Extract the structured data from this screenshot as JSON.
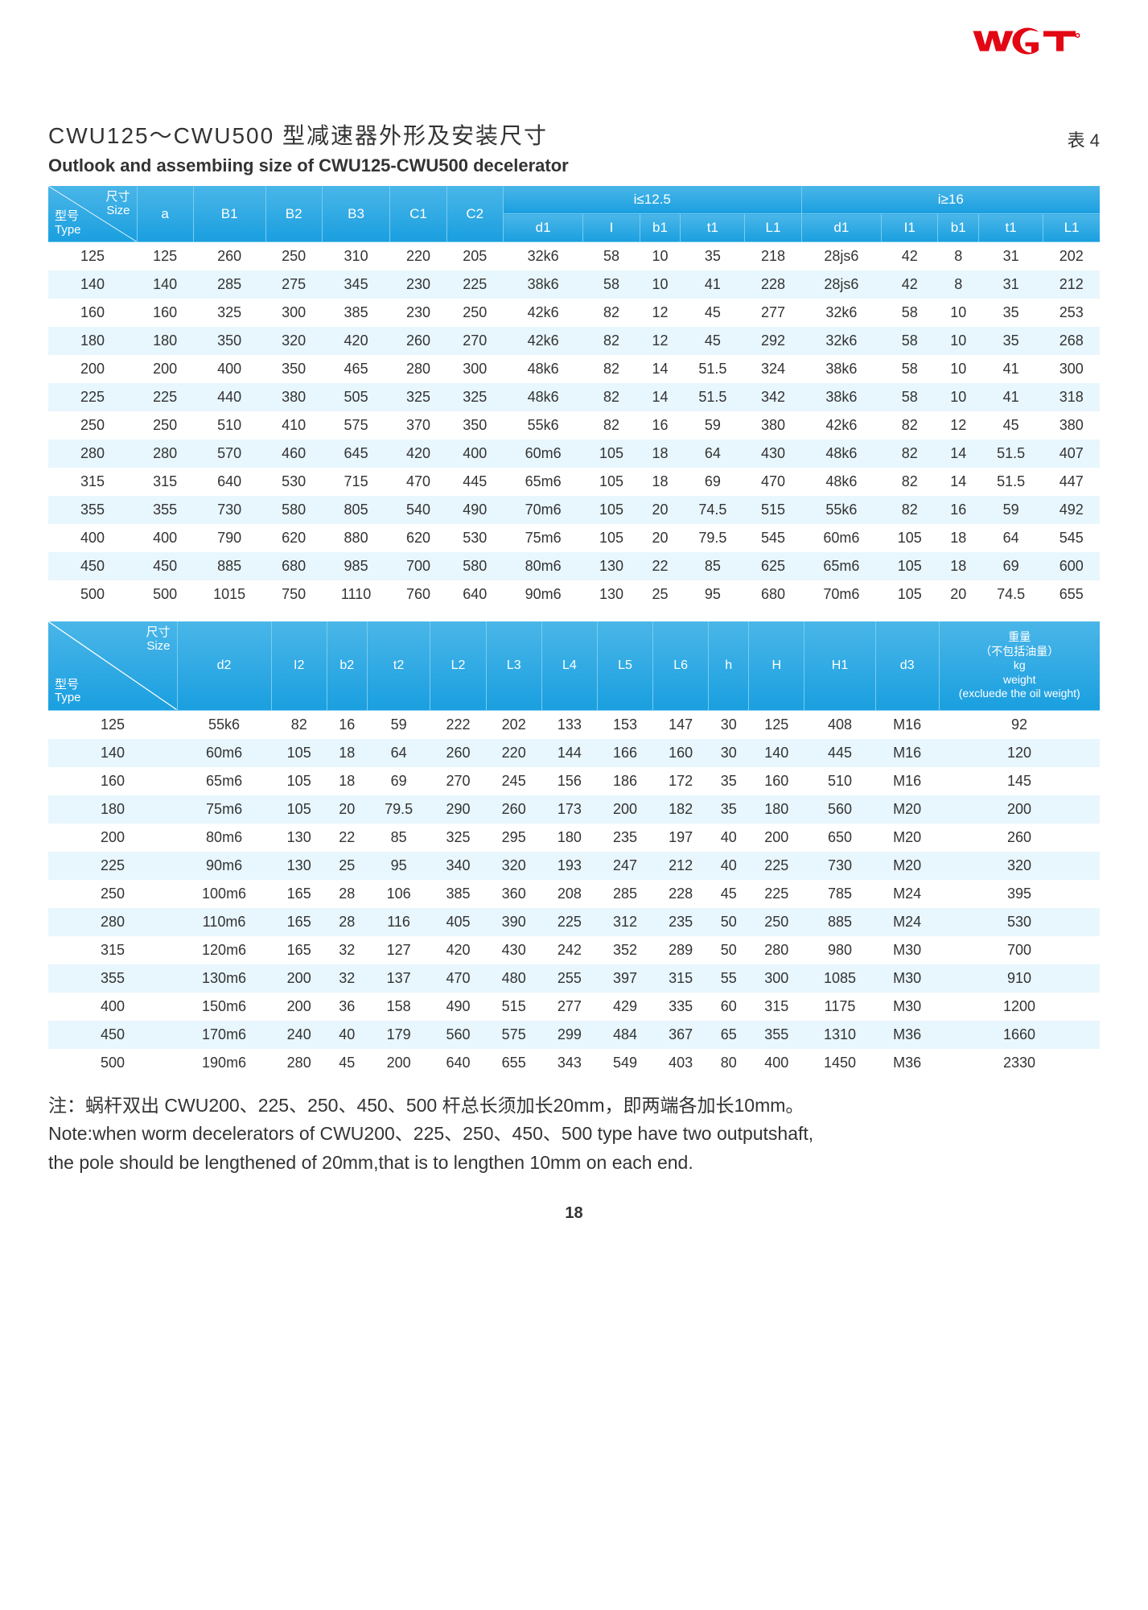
{
  "logo": {
    "text": "WGT",
    "color": "#e30613"
  },
  "title_cn": "CWU125～CWU500 型减速器外形及安装尺寸",
  "table_label": "表 4",
  "title_en": "Outlook and assembiing size of CWU125-CWU500 decelerator",
  "page_number": "18",
  "table1": {
    "header_colors": {
      "bg_top": "#4ab6e8",
      "bg_bottom": "#1a9fe0",
      "border": "#79cdee",
      "text": "#ffffff"
    },
    "row_colors": {
      "odd": "#ffffff",
      "even": "#e8f6fd"
    },
    "corner": {
      "top": "尺寸\nSize",
      "bottom": "型号\nType"
    },
    "group_i1": "i≤12.5",
    "group_i2": "i≥16",
    "base_cols": [
      "a",
      "B1",
      "B2",
      "B3",
      "C1",
      "C2"
    ],
    "sub_cols": [
      "d1",
      "I",
      "b1",
      "t1",
      "L1",
      "d1",
      "I1",
      "b1",
      "t1",
      "L1"
    ],
    "rows": [
      [
        "125",
        "125",
        "260",
        "250",
        "310",
        "220",
        "205",
        "32k6",
        "58",
        "10",
        "35",
        "218",
        "28js6",
        "42",
        "8",
        "31",
        "202"
      ],
      [
        "140",
        "140",
        "285",
        "275",
        "345",
        "230",
        "225",
        "38k6",
        "58",
        "10",
        "41",
        "228",
        "28js6",
        "42",
        "8",
        "31",
        "212"
      ],
      [
        "160",
        "160",
        "325",
        "300",
        "385",
        "230",
        "250",
        "42k6",
        "82",
        "12",
        "45",
        "277",
        "32k6",
        "58",
        "10",
        "35",
        "253"
      ],
      [
        "180",
        "180",
        "350",
        "320",
        "420",
        "260",
        "270",
        "42k6",
        "82",
        "12",
        "45",
        "292",
        "32k6",
        "58",
        "10",
        "35",
        "268"
      ],
      [
        "200",
        "200",
        "400",
        "350",
        "465",
        "280",
        "300",
        "48k6",
        "82",
        "14",
        "51.5",
        "324",
        "38k6",
        "58",
        "10",
        "41",
        "300"
      ],
      [
        "225",
        "225",
        "440",
        "380",
        "505",
        "325",
        "325",
        "48k6",
        "82",
        "14",
        "51.5",
        "342",
        "38k6",
        "58",
        "10",
        "41",
        "318"
      ],
      [
        "250",
        "250",
        "510",
        "410",
        "575",
        "370",
        "350",
        "55k6",
        "82",
        "16",
        "59",
        "380",
        "42k6",
        "82",
        "12",
        "45",
        "380"
      ],
      [
        "280",
        "280",
        "570",
        "460",
        "645",
        "420",
        "400",
        "60m6",
        "105",
        "18",
        "64",
        "430",
        "48k6",
        "82",
        "14",
        "51.5",
        "407"
      ],
      [
        "315",
        "315",
        "640",
        "530",
        "715",
        "470",
        "445",
        "65m6",
        "105",
        "18",
        "69",
        "470",
        "48k6",
        "82",
        "14",
        "51.5",
        "447"
      ],
      [
        "355",
        "355",
        "730",
        "580",
        "805",
        "540",
        "490",
        "70m6",
        "105",
        "20",
        "74.5",
        "515",
        "55k6",
        "82",
        "16",
        "59",
        "492"
      ],
      [
        "400",
        "400",
        "790",
        "620",
        "880",
        "620",
        "530",
        "75m6",
        "105",
        "20",
        "79.5",
        "545",
        "60m6",
        "105",
        "18",
        "64",
        "545"
      ],
      [
        "450",
        "450",
        "885",
        "680",
        "985",
        "700",
        "580",
        "80m6",
        "130",
        "22",
        "85",
        "625",
        "65m6",
        "105",
        "18",
        "69",
        "600"
      ],
      [
        "500",
        "500",
        "1015",
        "750",
        "1110",
        "760",
        "640",
        "90m6",
        "130",
        "25",
        "95",
        "680",
        "70m6",
        "105",
        "20",
        "74.5",
        "655"
      ]
    ]
  },
  "table2": {
    "corner": {
      "top": "尺寸\nSize",
      "bottom": "型号\nType"
    },
    "cols": [
      "d2",
      "I2",
      "b2",
      "t2",
      "L2",
      "L3",
      "L4",
      "L5",
      "L6",
      "h",
      "H",
      "H1",
      "d3"
    ],
    "weight_head": "重量\n（不包括油量）\nkg\nweight\n(excluede the oil weight)",
    "rows": [
      [
        "125",
        "55k6",
        "82",
        "16",
        "59",
        "222",
        "202",
        "133",
        "153",
        "147",
        "30",
        "125",
        "408",
        "M16",
        "92"
      ],
      [
        "140",
        "60m6",
        "105",
        "18",
        "64",
        "260",
        "220",
        "144",
        "166",
        "160",
        "30",
        "140",
        "445",
        "M16",
        "120"
      ],
      [
        "160",
        "65m6",
        "105",
        "18",
        "69",
        "270",
        "245",
        "156",
        "186",
        "172",
        "35",
        "160",
        "510",
        "M16",
        "145"
      ],
      [
        "180",
        "75m6",
        "105",
        "20",
        "79.5",
        "290",
        "260",
        "173",
        "200",
        "182",
        "35",
        "180",
        "560",
        "M20",
        "200"
      ],
      [
        "200",
        "80m6",
        "130",
        "22",
        "85",
        "325",
        "295",
        "180",
        "235",
        "197",
        "40",
        "200",
        "650",
        "M20",
        "260"
      ],
      [
        "225",
        "90m6",
        "130",
        "25",
        "95",
        "340",
        "320",
        "193",
        "247",
        "212",
        "40",
        "225",
        "730",
        "M20",
        "320"
      ],
      [
        "250",
        "100m6",
        "165",
        "28",
        "106",
        "385",
        "360",
        "208",
        "285",
        "228",
        "45",
        "225",
        "785",
        "M24",
        "395"
      ],
      [
        "280",
        "110m6",
        "165",
        "28",
        "116",
        "405",
        "390",
        "225",
        "312",
        "235",
        "50",
        "250",
        "885",
        "M24",
        "530"
      ],
      [
        "315",
        "120m6",
        "165",
        "32",
        "127",
        "420",
        "430",
        "242",
        "352",
        "289",
        "50",
        "280",
        "980",
        "M30",
        "700"
      ],
      [
        "355",
        "130m6",
        "200",
        "32",
        "137",
        "470",
        "480",
        "255",
        "397",
        "315",
        "55",
        "300",
        "1085",
        "M30",
        "910"
      ],
      [
        "400",
        "150m6",
        "200",
        "36",
        "158",
        "490",
        "515",
        "277",
        "429",
        "335",
        "60",
        "315",
        "1175",
        "M30",
        "1200"
      ],
      [
        "450",
        "170m6",
        "240",
        "40",
        "179",
        "560",
        "575",
        "299",
        "484",
        "367",
        "65",
        "355",
        "1310",
        "M36",
        "1660"
      ],
      [
        "500",
        "190m6",
        "280",
        "45",
        "200",
        "640",
        "655",
        "343",
        "549",
        "403",
        "80",
        "400",
        "1450",
        "M36",
        "2330"
      ]
    ]
  },
  "note_cn": "注：蜗杆双出 CWU200、225、250、450、500 杆总长须加长20mm，即两端各加长10mm。",
  "note_en1": "Note:when worm decelerators of  CWU200、225、250、450、500 type have two outputshaft,",
  "note_en2": "the pole should be lengthened of 20mm,that is to lengthen 10mm on each end."
}
